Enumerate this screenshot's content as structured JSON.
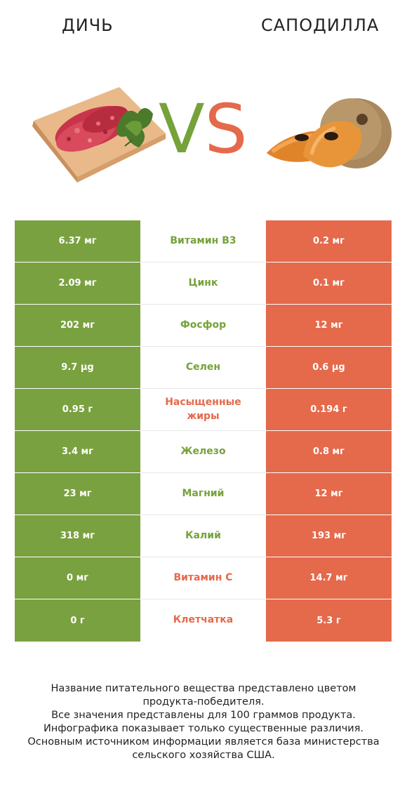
{
  "titles": {
    "left": "ДИЧЬ",
    "right": "САПОДИЛЛА"
  },
  "vs": {
    "v": "V",
    "s": "S"
  },
  "colors": {
    "left_accent": "#7aa140",
    "right_accent": "#e5694b"
  },
  "images": {
    "left": "minced-meat-on-board-icon",
    "right": "sapodilla-fruit-icon"
  },
  "rows": [
    {
      "left": "6.37 мг",
      "label": "Витамин B3",
      "right": "0.2 мг",
      "winner": "left"
    },
    {
      "left": "2.09 мг",
      "label": "Цинк",
      "right": "0.1 мг",
      "winner": "left"
    },
    {
      "left": "202 мг",
      "label": "Фосфор",
      "right": "12 мг",
      "winner": "left"
    },
    {
      "left": "9.7 µg",
      "label": "Селен",
      "right": "0.6 µg",
      "winner": "left"
    },
    {
      "left": "0.95 г",
      "label": "Насыщенные жиры",
      "right": "0.194 г",
      "winner": "right"
    },
    {
      "left": "3.4 мг",
      "label": "Железо",
      "right": "0.8 мг",
      "winner": "left"
    },
    {
      "left": "23 мг",
      "label": "Магний",
      "right": "12 мг",
      "winner": "left"
    },
    {
      "left": "318 мг",
      "label": "Калий",
      "right": "193 мг",
      "winner": "left"
    },
    {
      "left": "0 мг",
      "label": "Витамин C",
      "right": "14.7 мг",
      "winner": "right"
    },
    {
      "left": "0 г",
      "label": "Клетчатка",
      "right": "5.3 г",
      "winner": "right"
    }
  ],
  "footer": [
    "Название питательного вещества представлено цветом",
    "продукта-победителя.",
    "Все значения представлены для 100 граммов продукта.",
    "Инфографика показывает только существенные различия.",
    "Основным источником информации является база министерства",
    "сельского хозяйства США."
  ]
}
